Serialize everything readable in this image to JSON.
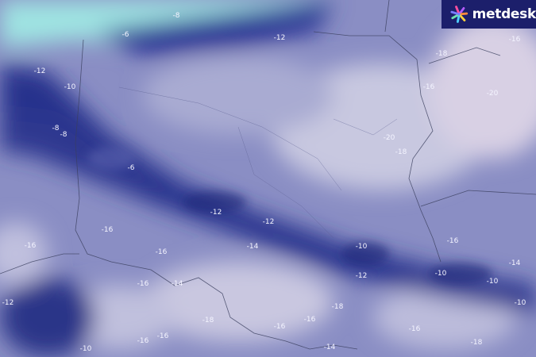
{
  "brand": {
    "name": "metdesk",
    "color": "#1c1f6b"
  },
  "map": {
    "type": "temperature contour map",
    "colors": {
      "coldest": "#1e2a82",
      "mid": "#6e74b8",
      "warm": "#c9c9e2",
      "sea": "#9fe4e2"
    },
    "contour_labels": [
      "-8",
      "-6",
      "-12",
      "-18",
      "-16",
      "-12",
      "-10",
      "-16",
      "-20",
      "-8",
      "-8",
      "-20",
      "-18",
      "-6",
      "-12",
      "-12",
      "-16",
      "-16",
      "-14",
      "-10",
      "-16",
      "-16",
      "-14",
      "-12",
      "-10",
      "-10",
      "-16",
      "-14",
      "-12",
      "-10",
      "-18",
      "-16",
      "-16",
      "-18",
      "-16",
      "-16",
      "-10",
      "-14",
      "-16",
      "-18"
    ]
  }
}
